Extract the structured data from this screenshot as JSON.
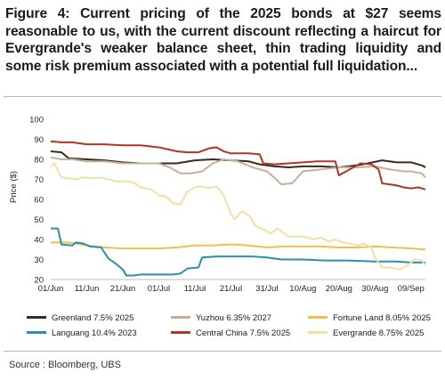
{
  "title": "Figure 4: Current pricing of the 2025 bonds at $27 seems reasonable to us, with the current discount reflecting a haircut for Evergrande's weaker balance sheet, thin trading liquidity and some risk premium associated with a potential full liquidation...",
  "source": "Source : Bloomberg, UBS",
  "chart_data": {
    "type": "line",
    "title": "",
    "xlabel": "",
    "ylabel": "Price ($)",
    "ylim": [
      20,
      100
    ],
    "yticks": [
      20,
      30,
      40,
      50,
      60,
      70,
      80,
      90,
      100
    ],
    "xlim": [
      0,
      104
    ],
    "xticks": [
      {
        "x": 0,
        "label": "01/Jun"
      },
      {
        "x": 10,
        "label": "11/Jun"
      },
      {
        "x": 20,
        "label": "21/Jun"
      },
      {
        "x": 30,
        "label": "01/Jul"
      },
      {
        "x": 40,
        "label": "11/Jul"
      },
      {
        "x": 50,
        "label": "21/Jul"
      },
      {
        "x": 60,
        "label": "31/Jul"
      },
      {
        "x": 70,
        "label": "10/Aug"
      },
      {
        "x": 80,
        "label": "20/Aug"
      },
      {
        "x": 90,
        "label": "30/Aug"
      },
      {
        "x": 100,
        "label": "09/Sep"
      }
    ],
    "grid": false,
    "legend_position": "bottom",
    "series": [
      {
        "name": "Greenland 7.5% 2025",
        "color": "#3b2a22",
        "points": [
          [
            0,
            84
          ],
          [
            3,
            83.5
          ],
          [
            5,
            80.5
          ],
          [
            10,
            80
          ],
          [
            15,
            79.5
          ],
          [
            20,
            78.5
          ],
          [
            25,
            78
          ],
          [
            30,
            78
          ],
          [
            35,
            78
          ],
          [
            40,
            79.5
          ],
          [
            45,
            80
          ],
          [
            50,
            79.5
          ],
          [
            55,
            79
          ],
          [
            58,
            77.5
          ],
          [
            62,
            76.5
          ],
          [
            66,
            76
          ],
          [
            70,
            76.5
          ],
          [
            75,
            76.5
          ],
          [
            80,
            76
          ],
          [
            85,
            77
          ],
          [
            88,
            78
          ],
          [
            92,
            79.5
          ],
          [
            96,
            78.5
          ],
          [
            100,
            78.5
          ],
          [
            103,
            77
          ],
          [
            104,
            76
          ]
        ]
      },
      {
        "name": "Yuzhou 6.35% 2027",
        "color": "#c4b098",
        "points": [
          [
            0,
            81
          ],
          [
            3,
            80
          ],
          [
            6,
            80
          ],
          [
            10,
            79
          ],
          [
            15,
            79
          ],
          [
            20,
            78
          ],
          [
            25,
            78
          ],
          [
            30,
            78
          ],
          [
            33,
            76
          ],
          [
            36,
            73
          ],
          [
            39,
            73
          ],
          [
            42,
            74
          ],
          [
            45,
            78
          ],
          [
            48,
            80
          ],
          [
            52,
            79
          ],
          [
            56,
            76
          ],
          [
            60,
            74
          ],
          [
            62,
            71
          ],
          [
            64,
            67.5
          ],
          [
            67,
            68
          ],
          [
            70,
            74
          ],
          [
            75,
            75
          ],
          [
            80,
            76
          ],
          [
            85,
            76
          ],
          [
            90,
            76.5
          ],
          [
            94,
            75
          ],
          [
            98,
            74
          ],
          [
            100,
            74
          ],
          [
            103,
            73
          ],
          [
            104,
            71
          ]
        ]
      },
      {
        "name": "Fortune Land 8.05% 2025",
        "color": "#f0c04a",
        "points": [
          [
            0,
            38.5
          ],
          [
            5,
            38.5
          ],
          [
            10,
            37
          ],
          [
            15,
            36
          ],
          [
            20,
            35.5
          ],
          [
            25,
            35.5
          ],
          [
            30,
            35.5
          ],
          [
            35,
            36
          ],
          [
            40,
            37
          ],
          [
            45,
            37
          ],
          [
            50,
            37.5
          ],
          [
            55,
            37
          ],
          [
            60,
            36
          ],
          [
            65,
            36.5
          ],
          [
            70,
            36.5
          ],
          [
            75,
            36.5
          ],
          [
            80,
            36
          ],
          [
            85,
            36
          ],
          [
            90,
            36.5
          ],
          [
            95,
            36
          ],
          [
            100,
            35.5
          ],
          [
            104,
            35
          ]
        ]
      },
      {
        "name": "Languang 10.4% 2023",
        "color": "#2e8eae",
        "points": [
          [
            0,
            45.5
          ],
          [
            2,
            45.5
          ],
          [
            3,
            37.5
          ],
          [
            6,
            37
          ],
          [
            7,
            38.5
          ],
          [
            9,
            38
          ],
          [
            11,
            36.5
          ],
          [
            14,
            36
          ],
          [
            16,
            30.5
          ],
          [
            18,
            28
          ],
          [
            20,
            25
          ],
          [
            21,
            22
          ],
          [
            23,
            22
          ],
          [
            25,
            22.5
          ],
          [
            30,
            22.5
          ],
          [
            34,
            22.5
          ],
          [
            36,
            23
          ],
          [
            38,
            25.5
          ],
          [
            41,
            26
          ],
          [
            42,
            31
          ],
          [
            46,
            31.5
          ],
          [
            50,
            31.5
          ],
          [
            56,
            31.5
          ],
          [
            60,
            31
          ],
          [
            64,
            30
          ],
          [
            70,
            30
          ],
          [
            76,
            29.5
          ],
          [
            82,
            29.5
          ],
          [
            90,
            29
          ],
          [
            96,
            29
          ],
          [
            100,
            28.5
          ],
          [
            104,
            28.5
          ]
        ]
      },
      {
        "name": "Central China 7.5% 2025",
        "color": "#b03525",
        "points": [
          [
            0,
            89
          ],
          [
            3,
            88.5
          ],
          [
            6,
            88.5
          ],
          [
            10,
            87.5
          ],
          [
            15,
            87.5
          ],
          [
            20,
            87
          ],
          [
            25,
            87
          ],
          [
            30,
            86
          ],
          [
            35,
            84
          ],
          [
            38,
            83.5
          ],
          [
            41,
            83.5
          ],
          [
            44,
            85.5
          ],
          [
            46,
            86
          ],
          [
            48,
            84
          ],
          [
            50,
            83
          ],
          [
            55,
            83
          ],
          [
            58,
            82.5
          ],
          [
            59,
            78
          ],
          [
            62,
            77.5
          ],
          [
            66,
            78
          ],
          [
            70,
            78.5
          ],
          [
            74,
            79
          ],
          [
            79,
            79
          ],
          [
            80,
            72
          ],
          [
            84,
            76
          ],
          [
            86,
            78
          ],
          [
            89,
            77.5
          ],
          [
            91,
            75
          ],
          [
            92,
            68
          ],
          [
            96,
            67
          ],
          [
            98,
            66
          ],
          [
            100,
            65.5
          ],
          [
            102,
            66
          ],
          [
            104,
            65
          ]
        ]
      },
      {
        "name": "Evergrande 8.75% 2025",
        "color": "#f1dfa7",
        "points": [
          [
            0,
            76.5
          ],
          [
            1,
            78
          ],
          [
            3,
            71
          ],
          [
            5,
            70.5
          ],
          [
            7,
            70
          ],
          [
            9,
            71
          ],
          [
            12,
            70.5
          ],
          [
            14,
            71
          ],
          [
            16,
            70
          ],
          [
            18,
            69
          ],
          [
            21,
            69
          ],
          [
            23,
            68.5
          ],
          [
            25,
            66
          ],
          [
            28,
            65
          ],
          [
            30,
            62
          ],
          [
            32,
            61.5
          ],
          [
            34,
            58
          ],
          [
            36,
            57.5
          ],
          [
            38,
            64
          ],
          [
            40,
            66
          ],
          [
            42,
            66.5
          ],
          [
            44,
            65.5
          ],
          [
            46,
            66.5
          ],
          [
            48,
            62
          ],
          [
            50,
            53
          ],
          [
            51,
            50
          ],
          [
            53,
            54
          ],
          [
            55,
            52
          ],
          [
            57,
            46.5
          ],
          [
            59,
            45
          ],
          [
            61,
            43
          ],
          [
            63,
            45.5
          ],
          [
            66,
            41.5
          ],
          [
            70,
            41.5
          ],
          [
            73,
            40
          ],
          [
            75,
            41
          ],
          [
            77,
            39
          ],
          [
            79,
            40
          ],
          [
            81,
            38.5
          ],
          [
            83,
            38
          ],
          [
            85,
            37
          ],
          [
            87,
            38
          ],
          [
            89,
            36
          ],
          [
            90,
            31
          ],
          [
            92,
            26
          ],
          [
            94,
            26
          ],
          [
            97,
            25
          ],
          [
            99,
            27
          ],
          [
            101,
            30
          ],
          [
            103,
            29.5
          ],
          [
            104,
            27
          ]
        ]
      }
    ]
  }
}
